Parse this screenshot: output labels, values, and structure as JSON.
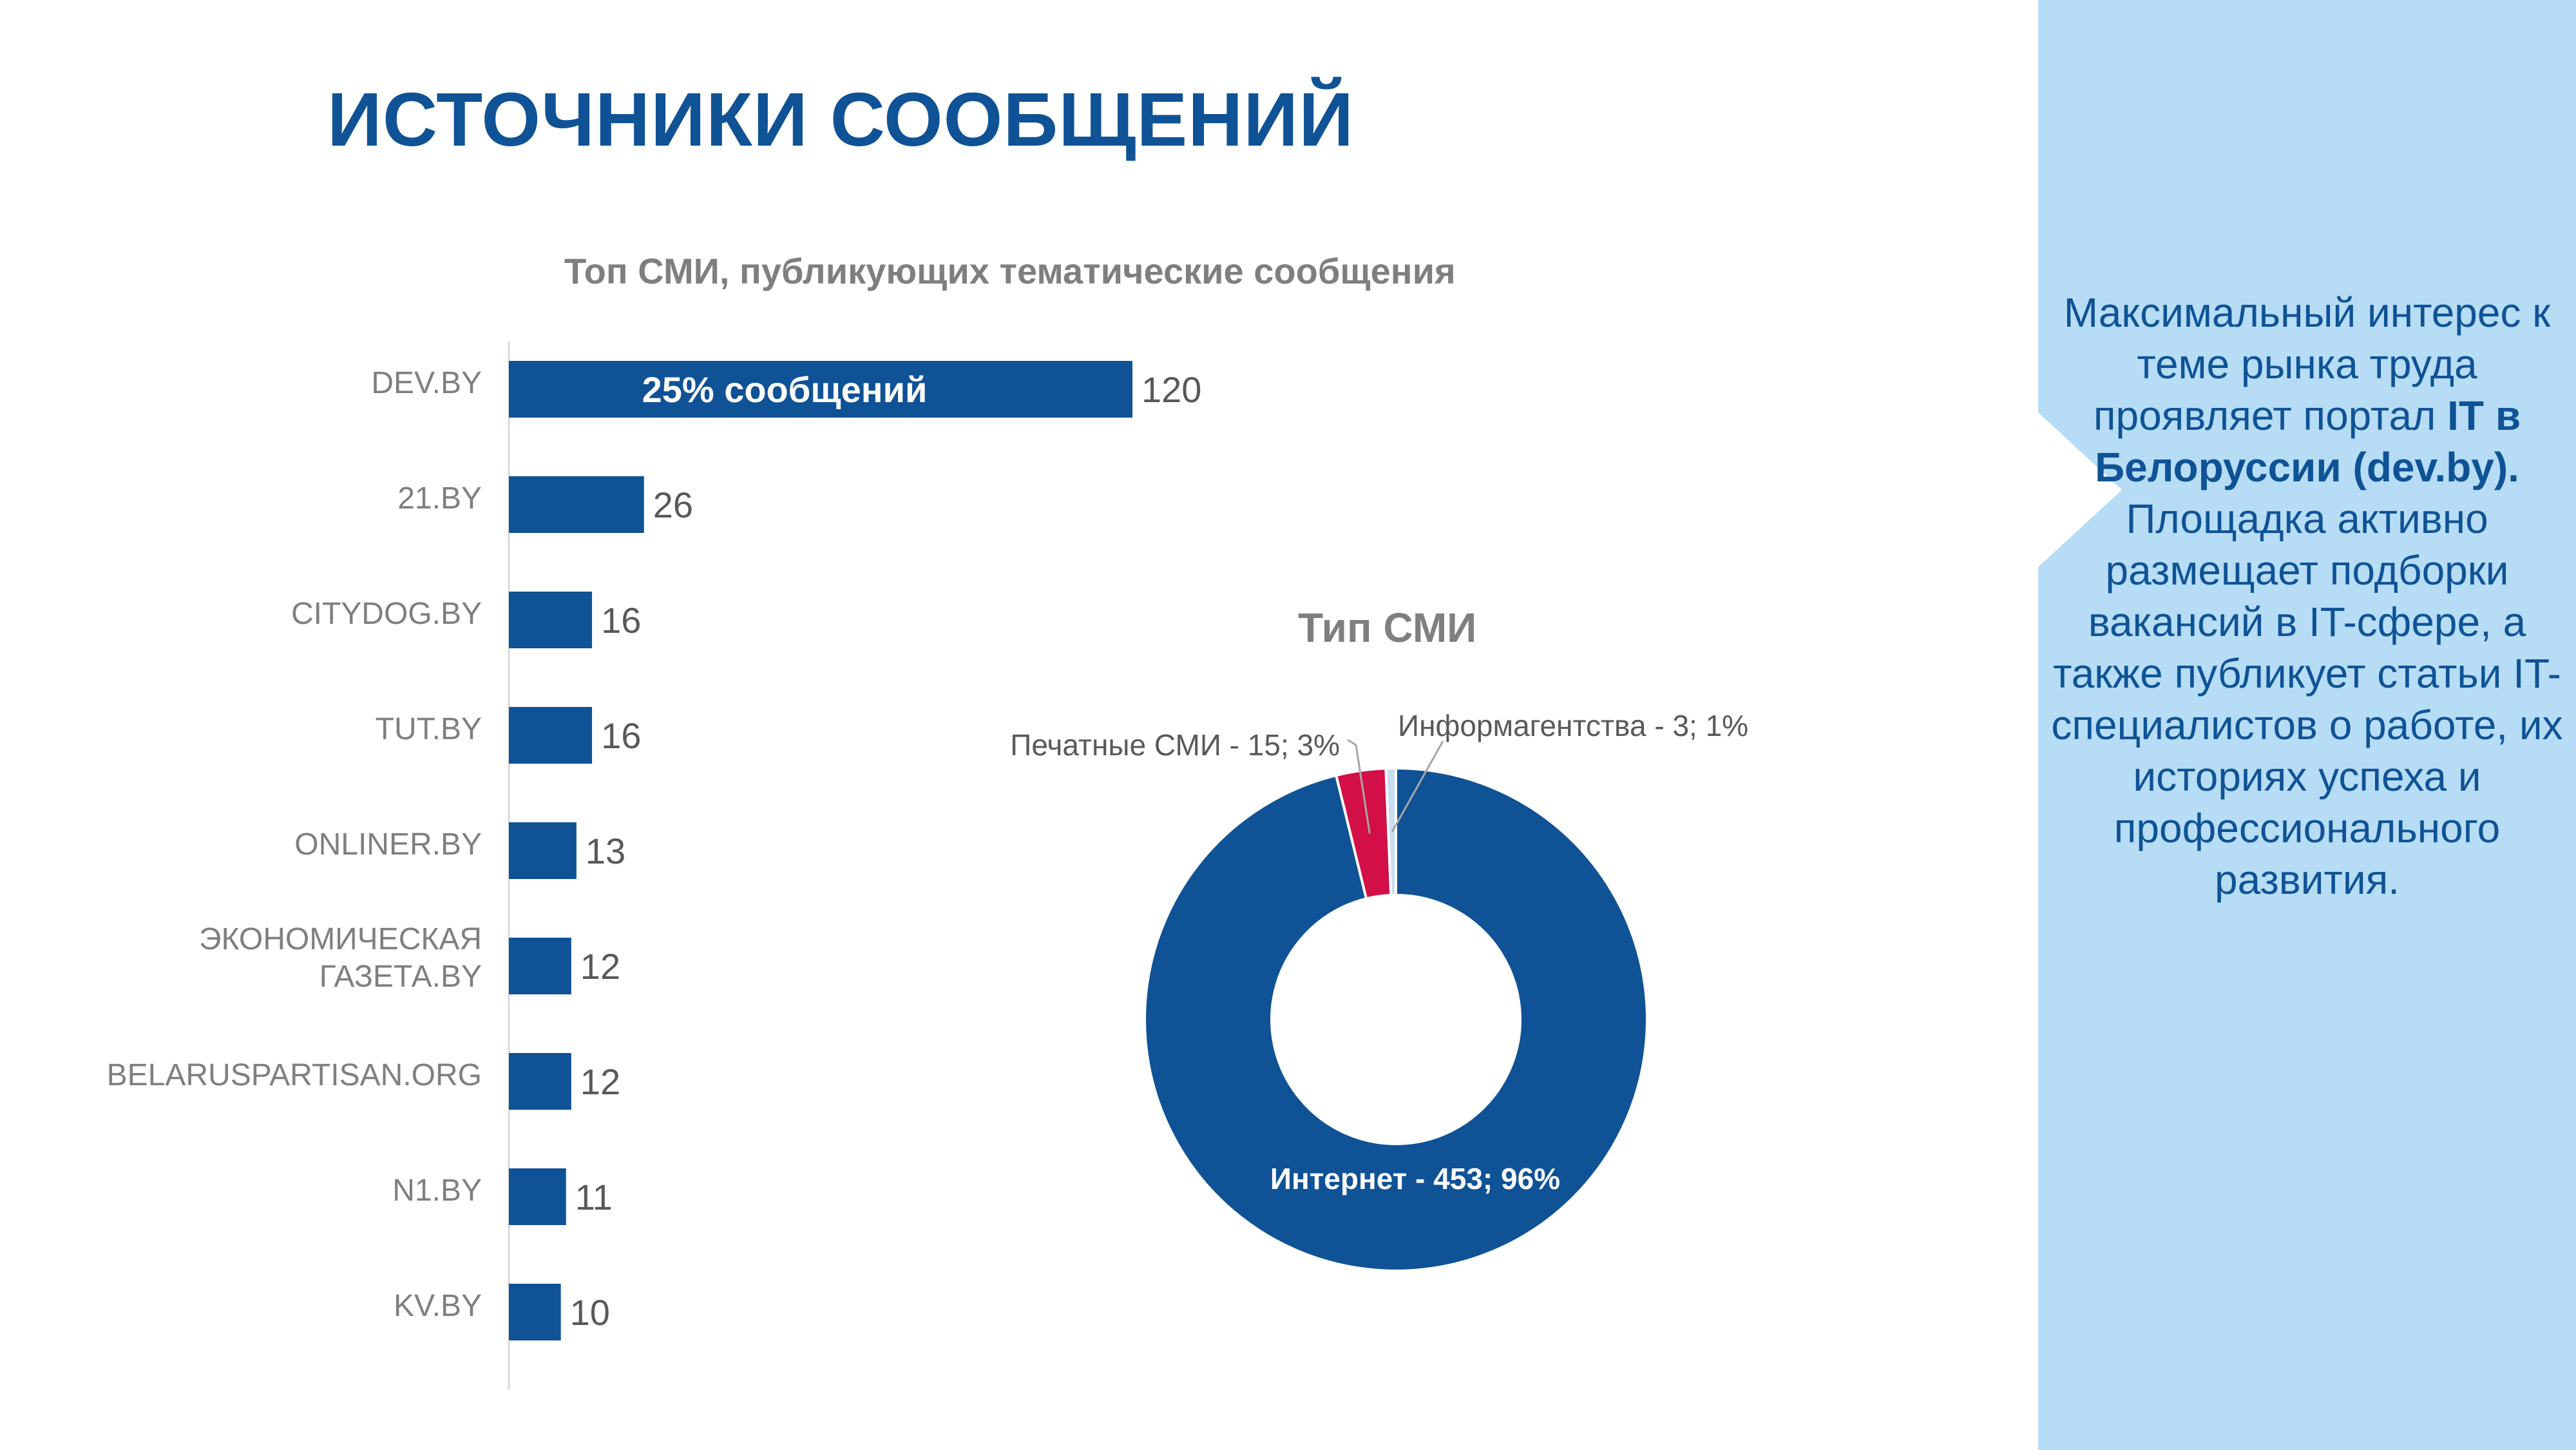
{
  "page": {
    "title": "ИСТОЧНИКИ СООБЩЕНИЙ"
  },
  "colors": {
    "brand_blue": "#0F5296",
    "red": "#D20F46",
    "light_blue_panel": "#B6DDF5",
    "light_slice": "#C9DCF2",
    "gray_text": "#7f7f7f"
  },
  "chart_data": [
    {
      "type": "bar",
      "orientation": "horizontal",
      "title": "Топ СМИ, публикующих тематические сообщения",
      "categories": [
        "DEV.BY",
        "21.BY",
        "CITYDOG.BY",
        "TUT.BY",
        "ONLINER.BY",
        "ЭКОНОМИЧЕСКАЯ ГАЗЕТА.BY",
        "BELARUSPARTISAN.ORG",
        "N1.BY",
        "KV.BY"
      ],
      "values": [
        120,
        26,
        16,
        16,
        13,
        12,
        12,
        11,
        10
      ],
      "annotation": "25% сообщений",
      "xlim": [
        0,
        120
      ],
      "grid": false
    },
    {
      "type": "pie",
      "subtype": "donut",
      "title": "Тип СМИ",
      "slices": [
        {
          "label": "Интернет",
          "value": 453,
          "percent": 96,
          "data_label": "Интернет - 453; 96%",
          "color": "#0F5296"
        },
        {
          "label": "Печатные СМИ",
          "value": 15,
          "percent": 3,
          "data_label": "Печатные СМИ - 15; 3%",
          "color": "#D20F46"
        },
        {
          "label": "Информагентства",
          "value": 3,
          "percent": 1,
          "data_label": "Информагентства - 3; 1%",
          "color": "#C9DCF2"
        }
      ]
    }
  ],
  "sidebar": {
    "text_before": "Максимальный интерес к теме рынка труда проявляет портал ",
    "highlight": "IT в Белоруссии (dev.by).",
    "text_after": " Площадка активно размещает подборки вакансий в IT-сфере, а также публикует статьи IT-специалистов о работе, их историях успеха и профессионального развития."
  }
}
